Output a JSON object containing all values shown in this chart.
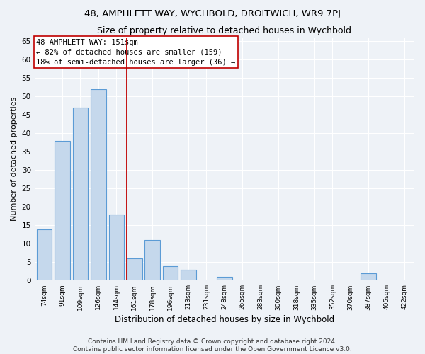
{
  "title": "48, AMPHLETT WAY, WYCHBOLD, DROITWICH, WR9 7PJ",
  "subtitle": "Size of property relative to detached houses in Wychbold",
  "xlabel": "Distribution of detached houses by size in Wychbold",
  "ylabel": "Number of detached properties",
  "categories": [
    "74sqm",
    "91sqm",
    "109sqm",
    "126sqm",
    "144sqm",
    "161sqm",
    "178sqm",
    "196sqm",
    "213sqm",
    "231sqm",
    "248sqm",
    "265sqm",
    "283sqm",
    "300sqm",
    "318sqm",
    "335sqm",
    "352sqm",
    "370sqm",
    "387sqm",
    "405sqm",
    "422sqm"
  ],
  "values": [
    14,
    38,
    47,
    52,
    18,
    6,
    11,
    4,
    3,
    0,
    1,
    0,
    0,
    0,
    0,
    0,
    0,
    0,
    2,
    0,
    0
  ],
  "bar_color": "#c5d8ec",
  "bar_edge_color": "#5b9bd5",
  "vline_x": 4.56,
  "vline_color": "#c00000",
  "annotation_text": "48 AMPHLETT WAY: 151sqm\n← 82% of detached houses are smaller (159)\n18% of semi-detached houses are larger (36) →",
  "annotation_box_color": "#c00000",
  "annotation_fontsize": 7.5,
  "background_color": "#eef2f7",
  "grid_color": "#ffffff",
  "ylim": [
    0,
    66
  ],
  "yticks": [
    0,
    5,
    10,
    15,
    20,
    25,
    30,
    35,
    40,
    45,
    50,
    55,
    60,
    65
  ],
  "footer": "Contains HM Land Registry data © Crown copyright and database right 2024.\nContains public sector information licensed under the Open Government Licence v3.0.",
  "title_fontsize": 9.5,
  "subtitle_fontsize": 9,
  "xlabel_fontsize": 8.5,
  "ylabel_fontsize": 8,
  "footer_fontsize": 6.5
}
